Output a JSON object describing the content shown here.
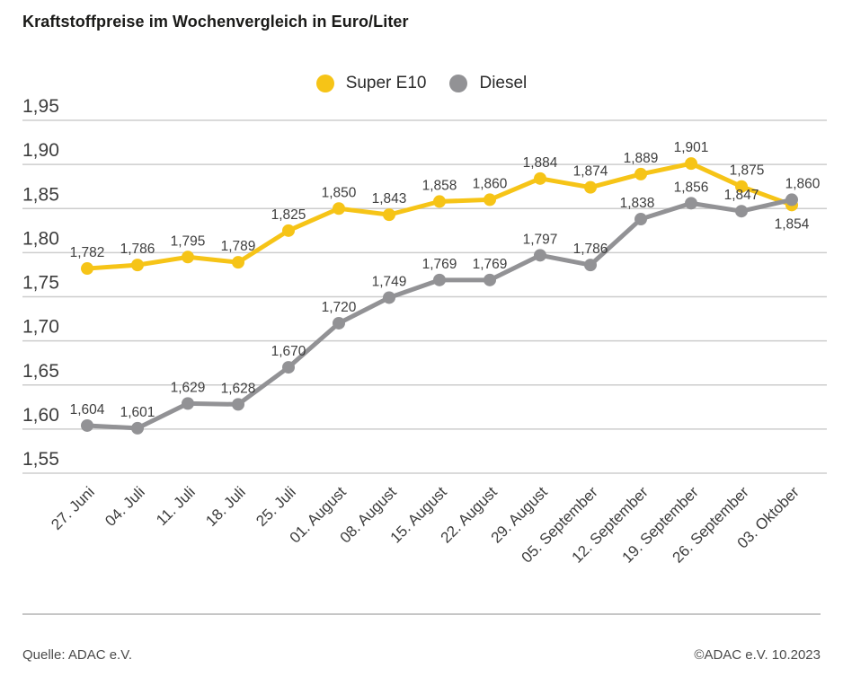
{
  "title": "Kraftstoffpreise im Wochenvergleich in Euro/Liter",
  "legend": [
    {
      "label": "Super E10",
      "color": "#F6C417"
    },
    {
      "label": "Diesel",
      "color": "#929295"
    }
  ],
  "footer": {
    "source": "Quelle: ADAC e.V.",
    "copyright": "©ADAC e.V. 10.2023"
  },
  "chart_data": {
    "type": "line",
    "title": "Kraftstoffpreise im Wochenvergleich in Euro/Liter",
    "xlabel": "",
    "ylabel": "Euro/Liter",
    "ylim": [
      1.55,
      1.95
    ],
    "ytick_step": 0.05,
    "grid": "horizontal",
    "legend_position": "top-center",
    "decimal_separator": ",",
    "categories": [
      "27. Juni",
      "04. Juli",
      "11. Juli",
      "18. Juli",
      "25. Juli",
      "01. August",
      "08. August",
      "15. August",
      "22. August",
      "29. August",
      "05. September",
      "12. September",
      "19. September",
      "26. September",
      "03. Oktober"
    ],
    "series": [
      {
        "name": "Super E10",
        "color": "#F6C417",
        "values": [
          1.782,
          1.786,
          1.795,
          1.789,
          1.825,
          1.85,
          1.843,
          1.858,
          1.86,
          1.884,
          1.874,
          1.889,
          1.901,
          1.875,
          1.854
        ],
        "label_below_indices": [
          14
        ],
        "label_dx": {
          "13": 6
        }
      },
      {
        "name": "Diesel",
        "color": "#929295",
        "values": [
          1.604,
          1.601,
          1.629,
          1.628,
          1.67,
          1.72,
          1.749,
          1.769,
          1.769,
          1.797,
          1.786,
          1.838,
          1.856,
          1.847,
          1.86
        ],
        "label_below_indices": [],
        "label_dx": {
          "11": -4,
          "14": 12
        }
      }
    ]
  }
}
